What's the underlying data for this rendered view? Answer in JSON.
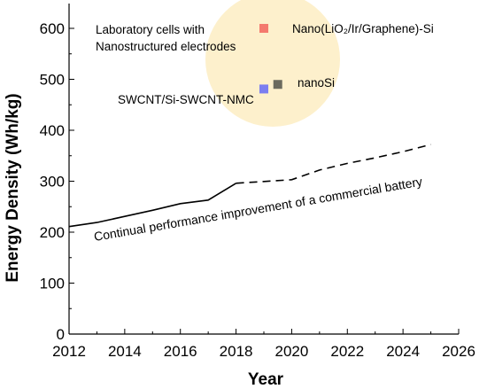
{
  "chart_data": {
    "type": "line",
    "xlabel": "Year",
    "ylabel": "Energy Density (Wh/kg)",
    "xlim": [
      2012,
      2026
    ],
    "ylim": [
      0,
      650
    ],
    "xticks": [
      2012,
      2014,
      2016,
      2018,
      2020,
      2022,
      2024,
      2026
    ],
    "yticks": [
      0,
      100,
      200,
      300,
      400,
      500,
      600
    ],
    "grid": false,
    "series": [
      {
        "style": "solid",
        "color": "#000000",
        "points": [
          [
            2012,
            211
          ],
          [
            2013,
            219
          ],
          [
            2014,
            231
          ],
          [
            2015,
            243
          ],
          [
            2016,
            256
          ],
          [
            2017,
            263
          ],
          [
            2018,
            296
          ]
        ]
      },
      {
        "style": "dashed",
        "color": "#000000",
        "points": [
          [
            2018,
            296
          ],
          [
            2020,
            303
          ],
          [
            2021,
            322
          ],
          [
            2022,
            335
          ],
          [
            2023,
            346
          ],
          [
            2024,
            358
          ],
          [
            2025,
            372
          ]
        ]
      }
    ],
    "markers": [
      {
        "label": "Nano(LiO₂/Ir/Graphene)-Si",
        "x": 2019.0,
        "y": 600,
        "color": "#f47a6e"
      },
      {
        "label": "nanoSi",
        "x": 2019.5,
        "y": 490,
        "color": "#6b6a5e"
      },
      {
        "label": "SWCNT/Si-SWCNT-NMC",
        "x": 2019.0,
        "y": 481,
        "color": "#7b7ef0"
      }
    ],
    "highlight_color": "#fdf0cc",
    "annotations": {
      "lab_cells_line1": "Laboratory cells with",
      "lab_cells_line2": "Nanostructured electrodes",
      "trend": "Continual performance improvement of a commercial battery"
    }
  }
}
